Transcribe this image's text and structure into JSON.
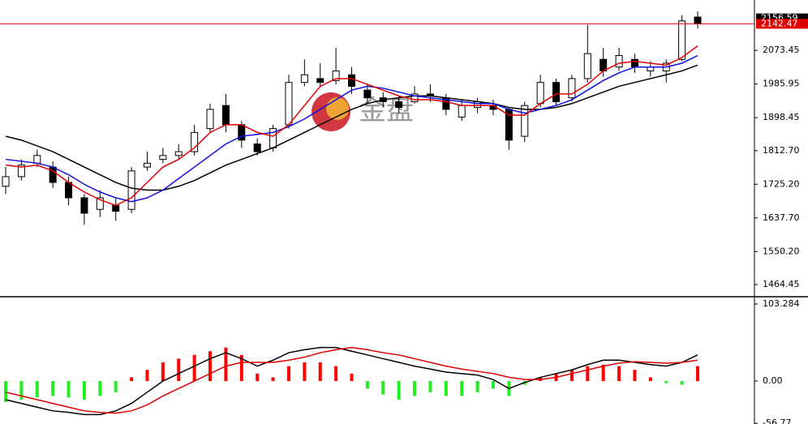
{
  "chart_data": {
    "type": "candlestick",
    "watermark": "金盘",
    "ylim": [
      1434.9,
      2204.4
    ],
    "yticks": [
      2073.45,
      1985.95,
      1898.45,
      {
        "value": 1812.7,
        "label": "1812.70"
      },
      {
        "value": 1725.2,
        "label": "1725.20"
      },
      {
        "value": 1637.7,
        "label": "1637.70"
      },
      {
        "value": 1550.2,
        "label": "1550.20"
      },
      1464.45
    ],
    "markers": [
      {
        "value": 2156.59,
        "color": "#000000",
        "line": false
      },
      {
        "value": 2142.47,
        "color": "#e00000",
        "line": true
      }
    ],
    "open": [
      1720,
      1745,
      1780,
      1770,
      1730,
      1690,
      1660,
      1670,
      1660,
      1770,
      1790,
      1800,
      1810,
      1870,
      1930,
      1880,
      1830,
      1820,
      1880,
      1990,
      2000,
      1995,
      2010,
      1970,
      1950,
      1940,
      1940,
      1960,
      1950,
      1900,
      1925,
      1930,
      1920,
      1850,
      1935,
      1990,
      1950,
      2000,
      2050,
      2030,
      2050,
      2020,
      2020,
      2050,
      2160
    ],
    "high": [
      1770,
      1790,
      1815,
      1785,
      1745,
      1700,
      1710,
      1690,
      1770,
      1810,
      1820,
      1830,
      1880,
      1935,
      1960,
      1890,
      1845,
      1880,
      2010,
      2050,
      2040,
      2080,
      2030,
      1985,
      1965,
      1955,
      1980,
      1985,
      1960,
      1945,
      1950,
      1945,
      1925,
      1940,
      2010,
      2000,
      2010,
      2140,
      2080,
      2080,
      2065,
      2045,
      2050,
      2165,
      2175
    ],
    "low": [
      1700,
      1735,
      1770,
      1715,
      1670,
      1620,
      1640,
      1630,
      1650,
      1760,
      1780,
      1790,
      1800,
      1860,
      1860,
      1820,
      1800,
      1810,
      1870,
      1980,
      1980,
      1985,
      1960,
      1935,
      1925,
      1910,
      1935,
      1940,
      1905,
      1890,
      1910,
      1905,
      1815,
      1835,
      1925,
      1930,
      1940,
      1990,
      2005,
      2020,
      2015,
      2005,
      1990,
      2045,
      2130
    ],
    "close": [
      1745,
      1775,
      1800,
      1730,
      1690,
      1650,
      1690,
      1655,
      1760,
      1780,
      1800,
      1810,
      1860,
      1920,
      1880,
      1840,
      1810,
      1870,
      1990,
      2010,
      1990,
      2020,
      1980,
      1950,
      1940,
      1925,
      1960,
      1955,
      1920,
      1930,
      1940,
      1920,
      1840,
      1930,
      1990,
      1940,
      2000,
      2065,
      2020,
      2060,
      2030,
      2030,
      2040,
      2150,
      2142.47
    ],
    "up_color": "#ffffff",
    "down_color": "#000000",
    "lines": [
      {
        "color": "#000000",
        "values": [
          1850,
          1840,
          1825,
          1810,
          1790,
          1770,
          1750,
          1730,
          1715,
          1710,
          1710,
          1720,
          1735,
          1755,
          1775,
          1790,
          1805,
          1820,
          1840,
          1860,
          1880,
          1900,
          1920,
          1935,
          1945,
          1950,
          1955,
          1955,
          1950,
          1945,
          1940,
          1935,
          1925,
          1920,
          1920,
          1925,
          1935,
          1950,
          1965,
          1980,
          1990,
          2000,
          2010,
          2020,
          2035
        ]
      },
      {
        "color": "#1010e0",
        "values": [
          1790,
          1785,
          1780,
          1770,
          1750,
          1725,
          1705,
          1690,
          1680,
          1690,
          1710,
          1740,
          1770,
          1800,
          1830,
          1850,
          1855,
          1860,
          1875,
          1895,
          1920,
          1945,
          1970,
          1980,
          1975,
          1965,
          1955,
          1950,
          1945,
          1940,
          1935,
          1935,
          1920,
          1910,
          1920,
          1930,
          1945,
          1970,
          1995,
          2015,
          2030,
          2030,
          2030,
          2040,
          2060
        ]
      },
      {
        "color": "#e00000",
        "values": [
          1775,
          1770,
          1775,
          1760,
          1730,
          1705,
          1685,
          1670,
          1690,
          1730,
          1770,
          1790,
          1820,
          1860,
          1880,
          1880,
          1860,
          1850,
          1880,
          1930,
          1980,
          2000,
          2000,
          1985,
          1970,
          1955,
          1945,
          1945,
          1940,
          1930,
          1930,
          1930,
          1905,
          1905,
          1935,
          1960,
          1960,
          1985,
          2020,
          2040,
          2045,
          2040,
          2035,
          2055,
          2085
        ]
      }
    ],
    "macd": {
      "ylim": [
        -57.6,
        110.9
      ],
      "yticks": [
        103.284,
        {
          "value": 0,
          "label": "0.00"
        },
        -56.77
      ],
      "pos_color": "#ff0000",
      "neg_color": "#22ee22",
      "histogram": [
        -28,
        -25,
        -22,
        -20,
        -22,
        -25,
        -20,
        -15,
        5,
        15,
        25,
        30,
        35,
        40,
        45,
        35,
        10,
        5,
        20,
        25,
        25,
        20,
        10,
        -10,
        -18,
        -25,
        -20,
        -15,
        -20,
        -20,
        -15,
        -10,
        -20,
        -5,
        5,
        10,
        15,
        20,
        22,
        20,
        15,
        5,
        -3,
        -5,
        20
      ],
      "lines": [
        {
          "color": "#000000",
          "values": [
            -25,
            -30,
            -35,
            -40,
            -42,
            -45,
            -45,
            -40,
            -30,
            -15,
            0,
            10,
            20,
            30,
            38,
            30,
            20,
            28,
            38,
            42,
            45,
            45,
            40,
            35,
            30,
            25,
            20,
            16,
            12,
            10,
            8,
            2,
            -10,
            -2,
            5,
            10,
            15,
            22,
            28,
            28,
            25,
            22,
            20,
            25,
            35
          ]
        },
        {
          "color": "#e00000",
          "values": [
            -15,
            -20,
            -25,
            -30,
            -35,
            -40,
            -42,
            -43,
            -40,
            -32,
            -20,
            -10,
            0,
            10,
            20,
            25,
            25,
            25,
            28,
            32,
            38,
            42,
            45,
            42,
            38,
            35,
            30,
            25,
            20,
            16,
            13,
            10,
            5,
            2,
            2,
            5,
            10,
            15,
            20,
            24,
            26,
            25,
            24,
            25,
            28
          ]
        }
      ]
    }
  }
}
